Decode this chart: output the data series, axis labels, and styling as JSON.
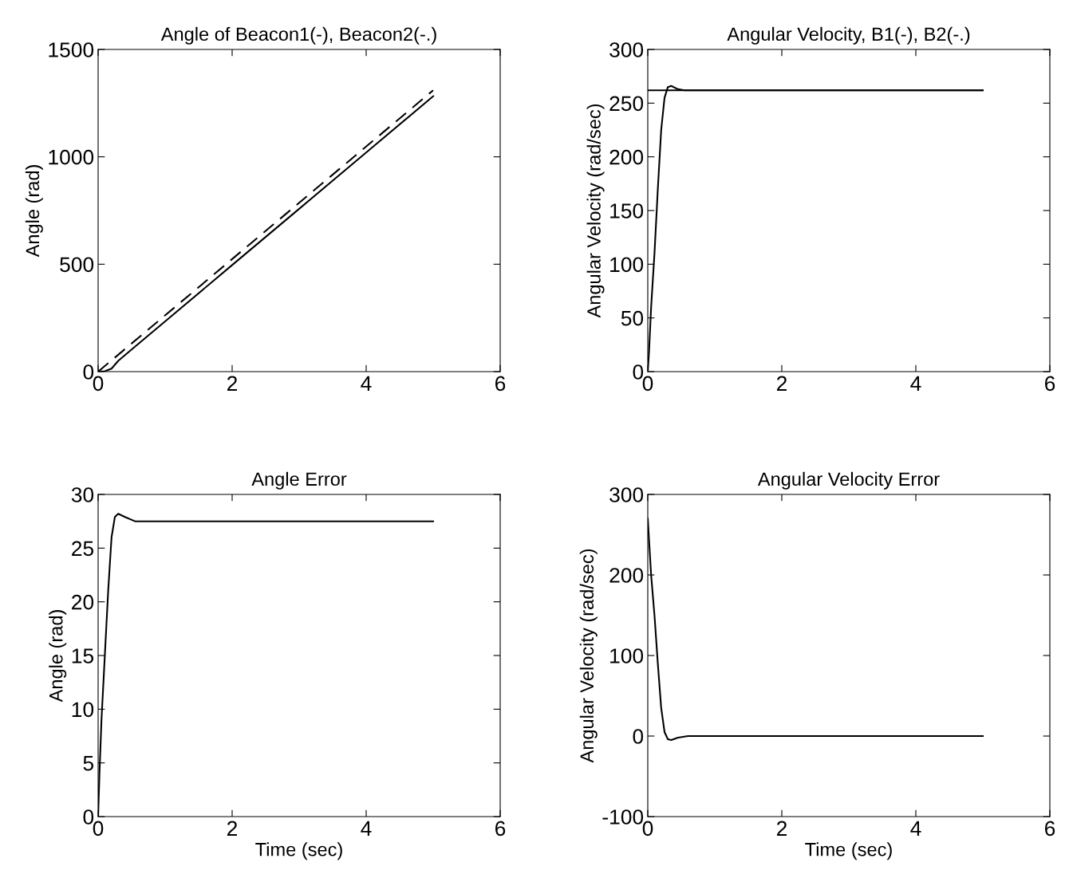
{
  "chart_data": [
    {
      "type": "line",
      "title": "Angle of Beacon1(-), Beacon2(-.)",
      "ylabel": "Angle (rad)",
      "xlim": [
        0,
        6
      ],
      "xticks": [
        0,
        2,
        4,
        6
      ],
      "ylim": [
        0,
        1500
      ],
      "yticks": [
        0,
        500,
        1000,
        1500
      ],
      "grid": false,
      "legend": false,
      "series": [
        {
          "color": "#000000",
          "line_style": "solid",
          "x": [
            0,
            0.1,
            0.2,
            0.3,
            0.5,
            1,
            2,
            3,
            4,
            5
          ],
          "values": [
            0,
            2,
            14,
            50,
            103,
            234,
            496,
            758,
            1020,
            1282
          ]
        },
        {
          "color": "#000000",
          "line_style": "dashed",
          "x": [
            0,
            5
          ],
          "values": [
            0,
            1310
          ]
        }
      ]
    },
    {
      "type": "line",
      "title": "Angular Velocity, B1(-), B2(-.)",
      "ylabel": "Angular Velocity (rad/sec)",
      "xlim": [
        0,
        6
      ],
      "xticks": [
        0,
        2,
        4,
        6
      ],
      "ylim": [
        0,
        300
      ],
      "yticks": [
        0,
        50,
        100,
        150,
        200,
        250,
        300
      ],
      "grid": false,
      "legend": false,
      "series": [
        {
          "color": "#000000",
          "line_style": "solid",
          "x": [
            0,
            5
          ],
          "values": [
            262,
            262
          ]
        },
        {
          "color": "#000000",
          "line_style": "solid",
          "x": [
            0,
            0.02,
            0.05,
            0.1,
            0.15,
            0.2,
            0.25,
            0.3,
            0.35,
            0.45,
            0.55,
            5
          ],
          "values": [
            0,
            20,
            60,
            110,
            170,
            225,
            255,
            265,
            266,
            263,
            262,
            262
          ]
        }
      ]
    },
    {
      "type": "line",
      "title": "Angle Error",
      "xlabel": "Time (sec)",
      "ylabel": "Angle (rad)",
      "xlim": [
        0,
        6
      ],
      "xticks": [
        0,
        2,
        4,
        6
      ],
      "ylim": [
        0,
        30
      ],
      "yticks": [
        0,
        5,
        10,
        15,
        20,
        25,
        30
      ],
      "grid": false,
      "legend": false,
      "series": [
        {
          "color": "#000000",
          "line_style": "solid",
          "x": [
            0,
            0.02,
            0.05,
            0.1,
            0.15,
            0.2,
            0.25,
            0.3,
            0.4,
            0.55,
            5
          ],
          "values": [
            0,
            4,
            9,
            15,
            21,
            26,
            27.9,
            28.2,
            27.9,
            27.5,
            27.5
          ]
        }
      ]
    },
    {
      "type": "line",
      "title": "Angular Velocity Error",
      "xlabel": "Time (sec)",
      "ylabel": "Angular Velocity (rad/sec)",
      "xlim": [
        0,
        6
      ],
      "xticks": [
        0,
        2,
        4,
        6
      ],
      "ylim": [
        -100,
        300
      ],
      "yticks": [
        -100,
        0,
        100,
        200,
        300
      ],
      "grid": false,
      "legend": false,
      "series": [
        {
          "color": "#000000",
          "line_style": "solid",
          "x": [
            0,
            0.05,
            0.1,
            0.15,
            0.2,
            0.25,
            0.3,
            0.35,
            0.45,
            0.6,
            5
          ],
          "values": [
            270,
            200,
            150,
            90,
            35,
            5,
            -4,
            -5,
            -2,
            0,
            0
          ]
        }
      ]
    }
  ]
}
